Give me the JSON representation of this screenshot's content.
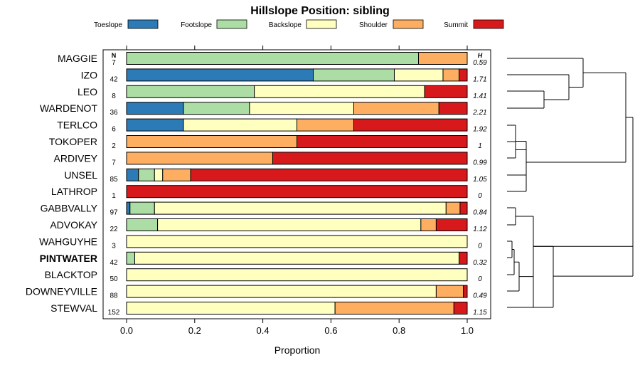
{
  "chart_data": {
    "type": "bar",
    "stacked": true,
    "orientation": "horizontal",
    "title": "Hillslope Position: sibling",
    "xlabel": "Proportion",
    "ylabel": "",
    "xlim": [
      0,
      1
    ],
    "x_ticks": [
      "0.0",
      "0.2",
      "0.4",
      "0.6",
      "0.8",
      "1.0"
    ],
    "legend_position": "top",
    "n_header": "N",
    "h_header": "H",
    "highlighted_category": "PINTWATER",
    "series": [
      {
        "name": "Toeslope",
        "color": "#2c7bb6"
      },
      {
        "name": "Footslope",
        "color": "#abdda4"
      },
      {
        "name": "Backslope",
        "color": "#ffffbf"
      },
      {
        "name": "Shoulder",
        "color": "#fdae61"
      },
      {
        "name": "Summit",
        "color": "#d7191c"
      }
    ],
    "rows": [
      {
        "name": "MAGGIE",
        "n": "7",
        "h": "0.59",
        "values": [
          0,
          0.857,
          0,
          0.143,
          0
        ]
      },
      {
        "name": "IZO",
        "n": "42",
        "h": "1.71",
        "values": [
          0.548,
          0.238,
          0.143,
          0.047,
          0.024
        ]
      },
      {
        "name": "LEO",
        "n": "8",
        "h": "1.41",
        "values": [
          0,
          0.375,
          0.5,
          0,
          0.125
        ]
      },
      {
        "name": "WARDENOT",
        "n": "36",
        "h": "2.21",
        "values": [
          0.167,
          0.194,
          0.306,
          0.25,
          0.083
        ]
      },
      {
        "name": "TERLCO",
        "n": "6",
        "h": "1.92",
        "values": [
          0.167,
          0,
          0.333,
          0.167,
          0.333
        ]
      },
      {
        "name": "TOKOPER",
        "n": "2",
        "h": "1",
        "values": [
          0,
          0,
          0,
          0.5,
          0.5
        ]
      },
      {
        "name": "ARDIVEY",
        "n": "7",
        "h": "0.99",
        "values": [
          0,
          0,
          0,
          0.429,
          0.571
        ]
      },
      {
        "name": "UNSEL",
        "n": "85",
        "h": "1.05",
        "values": [
          0.035,
          0.047,
          0.024,
          0.082,
          0.812
        ]
      },
      {
        "name": "LATHROP",
        "n": "1",
        "h": "0",
        "values": [
          0,
          0,
          0,
          0,
          1
        ]
      },
      {
        "name": "GABBVALLY",
        "n": "97",
        "h": "0.84",
        "values": [
          0.01,
          0.072,
          0.856,
          0.041,
          0.021
        ]
      },
      {
        "name": "ADVOKAY",
        "n": "22",
        "h": "1.12",
        "values": [
          0,
          0.091,
          0.773,
          0.045,
          0.091
        ]
      },
      {
        "name": "WAHGUYHE",
        "n": "3",
        "h": "0",
        "values": [
          0,
          0,
          1,
          0,
          0
        ]
      },
      {
        "name": "PINTWATER",
        "n": "42",
        "h": "0.32",
        "values": [
          0,
          0.024,
          0.952,
          0,
          0.024
        ]
      },
      {
        "name": "BLACKTOP",
        "n": "50",
        "h": "0",
        "values": [
          0,
          0,
          1,
          0,
          0
        ]
      },
      {
        "name": "DOWNEYVILLE",
        "n": "88",
        "h": "0.49",
        "values": [
          0,
          0,
          0.909,
          0.08,
          0.011
        ]
      },
      {
        "name": "STEWVAL",
        "n": "152",
        "h": "1.15",
        "values": [
          0,
          0,
          0.612,
          0.349,
          0.039
        ]
      }
    ]
  }
}
